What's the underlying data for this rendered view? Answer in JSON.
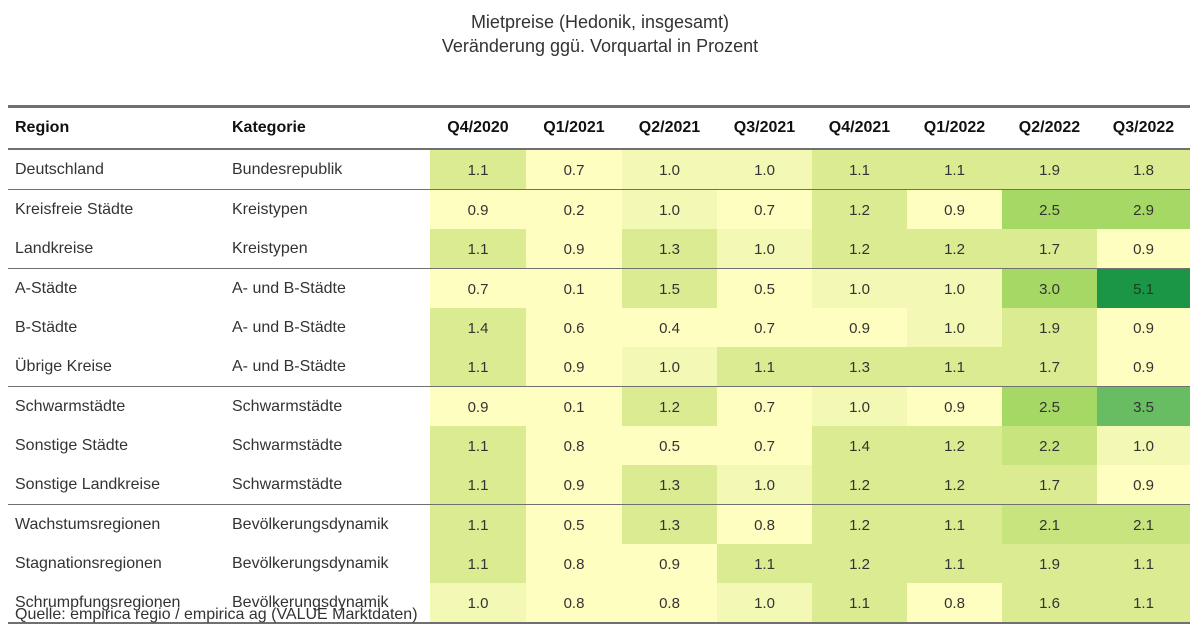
{
  "title_line1": "Mietpreise (Hedonik, insgesamt)",
  "title_line2": "Veränderung ggü. Vorquartal in Prozent",
  "source": "Quelle: empirica regio / empirica ag (VALUE Marktdaten)",
  "colors": {
    "v0": "#fefec0",
    "v1": "#f3f9b4",
    "v2": "#daeb92",
    "v3": "#c8e47e",
    "v4": "#a6d866",
    "v5": "#68bd63",
    "v6": "#1a9646"
  },
  "chart_data": {
    "type": "heatmap",
    "title": "Mietpreise (Hedonik, insgesamt)",
    "subtitle": "Veränderung ggü. Vorquartal in Prozent",
    "columns": [
      "Region",
      "Kategorie",
      "Q4/2020",
      "Q1/2021",
      "Q2/2021",
      "Q3/2021",
      "Q4/2021",
      "Q1/2022",
      "Q2/2022",
      "Q3/2022"
    ],
    "rows": [
      {
        "region": "Deutschland",
        "kategorie": "Bundesrepublik",
        "values": [
          "1.1",
          "0.7",
          "1.0",
          "1.0",
          "1.1",
          "1.1",
          "1.9",
          "1.8"
        ],
        "group_start": true
      },
      {
        "region": "Kreisfreie Städte",
        "kategorie": "Kreistypen",
        "values": [
          "0.9",
          "0.2",
          "1.0",
          "0.7",
          "1.2",
          "0.9",
          "2.5",
          "2.9"
        ],
        "group_start": true
      },
      {
        "region": "Landkreise",
        "kategorie": "Kreistypen",
        "values": [
          "1.1",
          "0.9",
          "1.3",
          "1.0",
          "1.2",
          "1.2",
          "1.7",
          "0.9"
        ],
        "group_start": false
      },
      {
        "region": "A-Städte",
        "kategorie": "A- und B-Städte",
        "values": [
          "0.7",
          "0.1",
          "1.5",
          "0.5",
          "1.0",
          "1.0",
          "3.0",
          "5.1"
        ],
        "group_start": true
      },
      {
        "region": "B-Städte",
        "kategorie": "A- und B-Städte",
        "values": [
          "1.4",
          "0.6",
          "0.4",
          "0.7",
          "0.9",
          "1.0",
          "1.9",
          "0.9"
        ],
        "group_start": false
      },
      {
        "region": "Übrige Kreise",
        "kategorie": "A- und B-Städte",
        "values": [
          "1.1",
          "0.9",
          "1.0",
          "1.1",
          "1.3",
          "1.1",
          "1.7",
          "0.9"
        ],
        "group_start": false
      },
      {
        "region": "Schwarmstädte",
        "kategorie": "Schwarmstädte",
        "values": [
          "0.9",
          "0.1",
          "1.2",
          "0.7",
          "1.0",
          "0.9",
          "2.5",
          "3.5"
        ],
        "group_start": true
      },
      {
        "region": "Sonstige Städte",
        "kategorie": "Schwarmstädte",
        "values": [
          "1.1",
          "0.8",
          "0.5",
          "0.7",
          "1.4",
          "1.2",
          "2.2",
          "1.0"
        ],
        "group_start": false
      },
      {
        "region": "Sonstige Landkreise",
        "kategorie": "Schwarmstädte",
        "values": [
          "1.1",
          "0.9",
          "1.3",
          "1.0",
          "1.2",
          "1.2",
          "1.7",
          "0.9"
        ],
        "group_start": false
      },
      {
        "region": "Wachstumsregionen",
        "kategorie": "Bevölkerungsdynamik",
        "values": [
          "1.1",
          "0.5",
          "1.3",
          "0.8",
          "1.2",
          "1.1",
          "2.1",
          "2.1"
        ],
        "group_start": true
      },
      {
        "region": "Stagnationsregionen",
        "kategorie": "Bevölkerungsdynamik",
        "values": [
          "1.1",
          "0.8",
          "0.9",
          "1.1",
          "1.2",
          "1.1",
          "1.9",
          "1.1"
        ],
        "group_start": false
      },
      {
        "region": "Schrumpfungsregionen",
        "kategorie": "Bevölkerungsdynamik",
        "values": [
          "1.0",
          "0.8",
          "0.8",
          "1.0",
          "1.1",
          "0.8",
          "1.6",
          "1.1"
        ],
        "group_start": false
      }
    ]
  }
}
